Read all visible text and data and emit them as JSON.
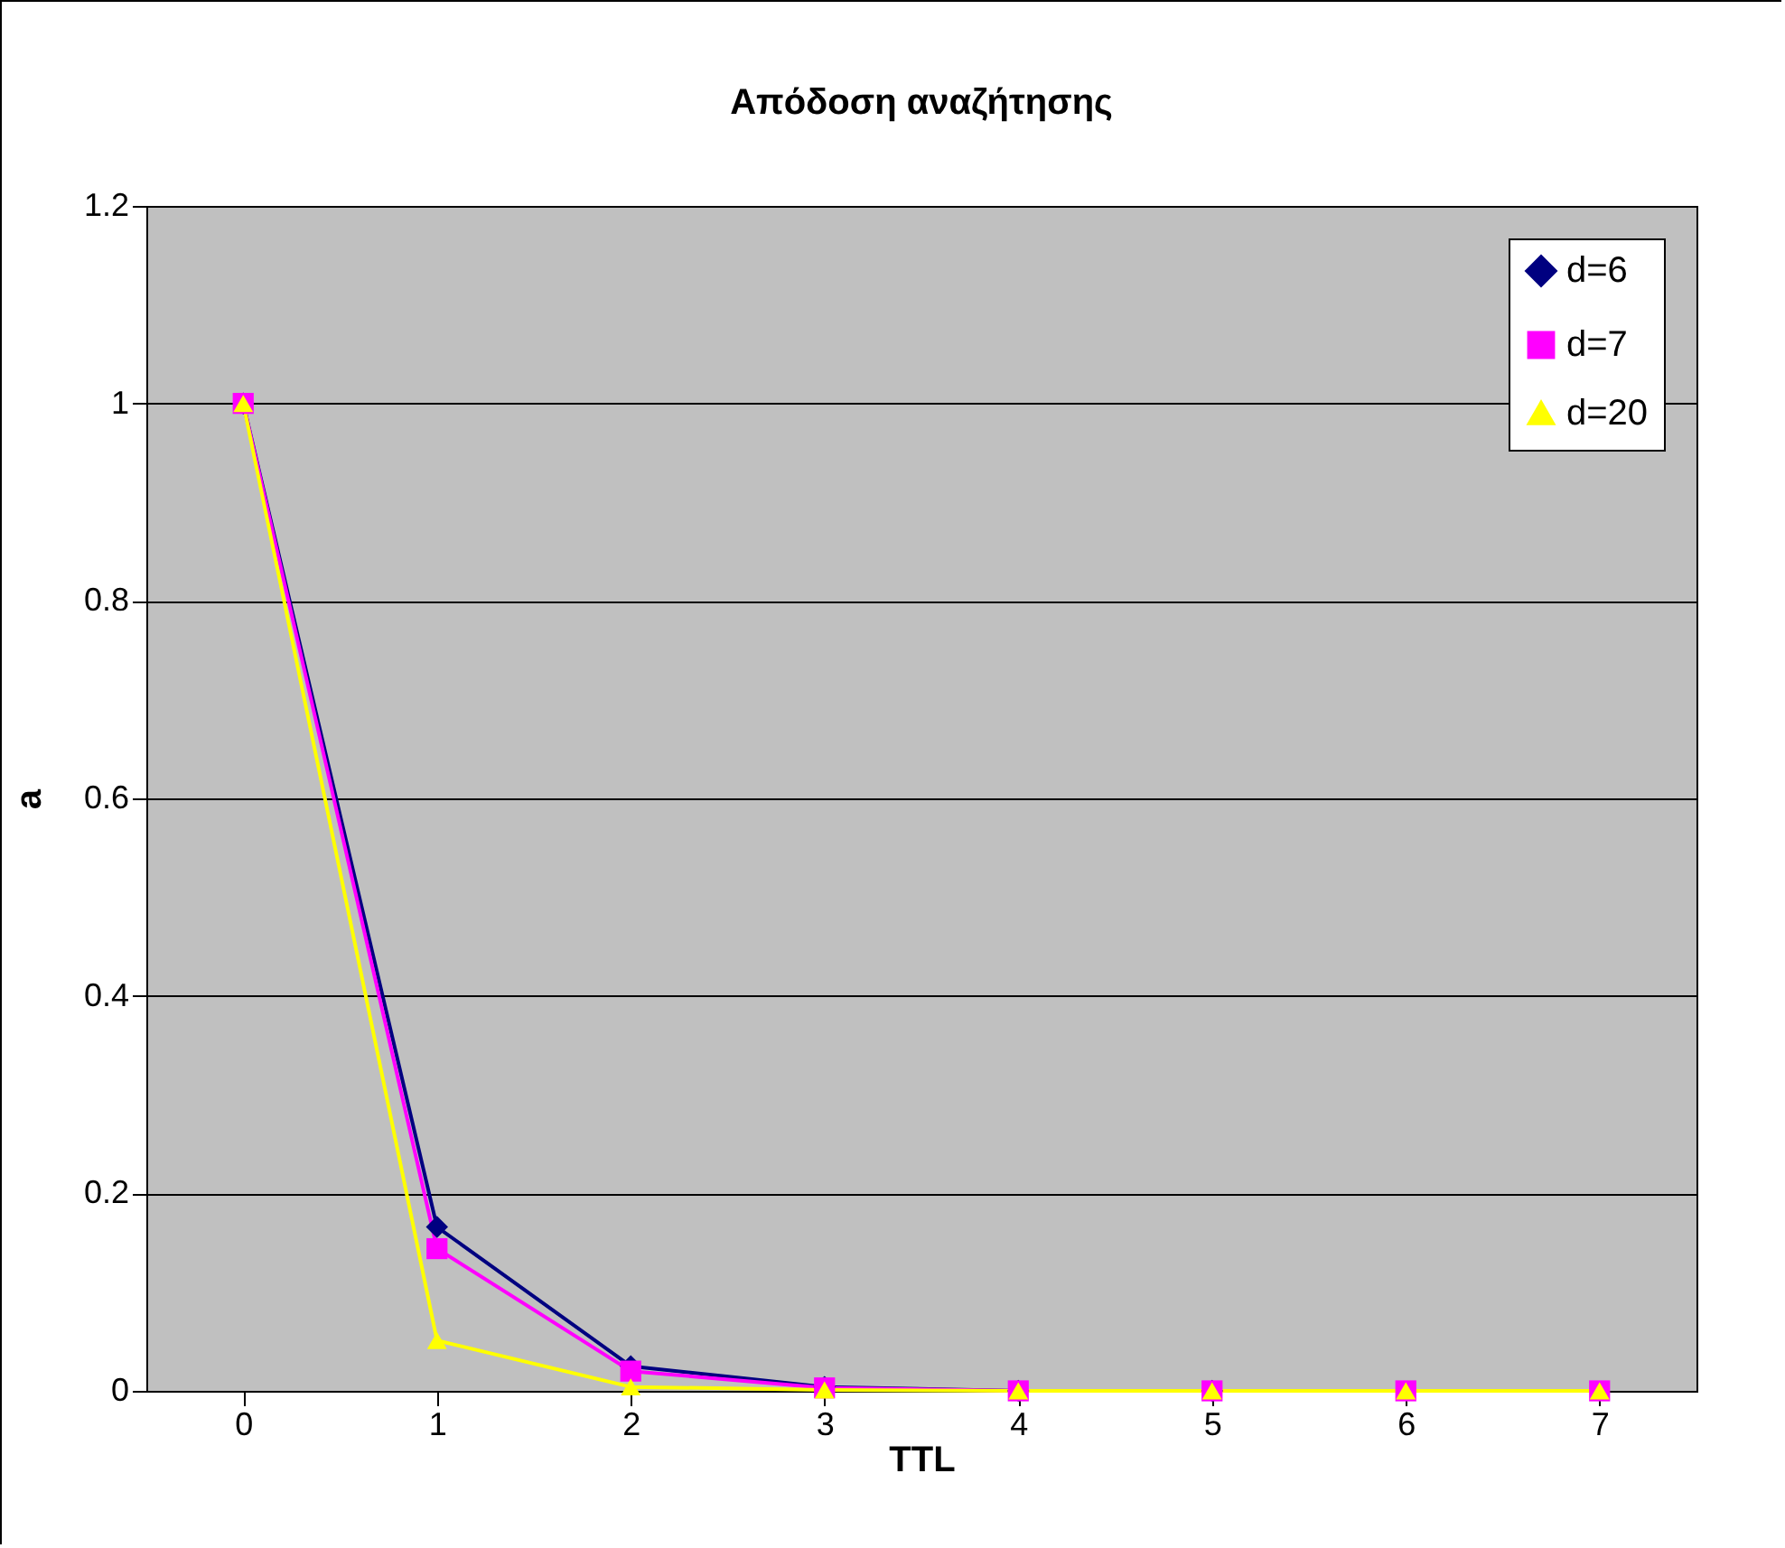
{
  "chart_data": {
    "type": "line",
    "title": "Απόδοση αναζήτησης",
    "xlabel": "TTL",
    "ylabel": "a",
    "categories": [
      "0",
      "1",
      "2",
      "3",
      "4",
      "5",
      "6",
      "7"
    ],
    "series": [
      {
        "name": "d=6",
        "color": "#000080",
        "marker": "diamond",
        "values": [
          1,
          0.166,
          0.025,
          0.004,
          0,
          0,
          null,
          null
        ]
      },
      {
        "name": "d=7",
        "color": "#ff00ff",
        "marker": "square",
        "values": [
          1,
          0.144,
          0.02,
          0.003,
          0,
          0,
          0,
          0
        ]
      },
      {
        "name": "d=20",
        "color": "#ffff00",
        "marker": "triangle",
        "values": [
          1,
          0.051,
          0.004,
          0.001,
          0,
          0,
          0,
          0
        ]
      }
    ],
    "ylim": [
      0,
      1.2
    ],
    "yticks": [
      0,
      0.2,
      0.4,
      0.6,
      0.8,
      1,
      1.2
    ],
    "grid": "y",
    "legend": "top right"
  }
}
